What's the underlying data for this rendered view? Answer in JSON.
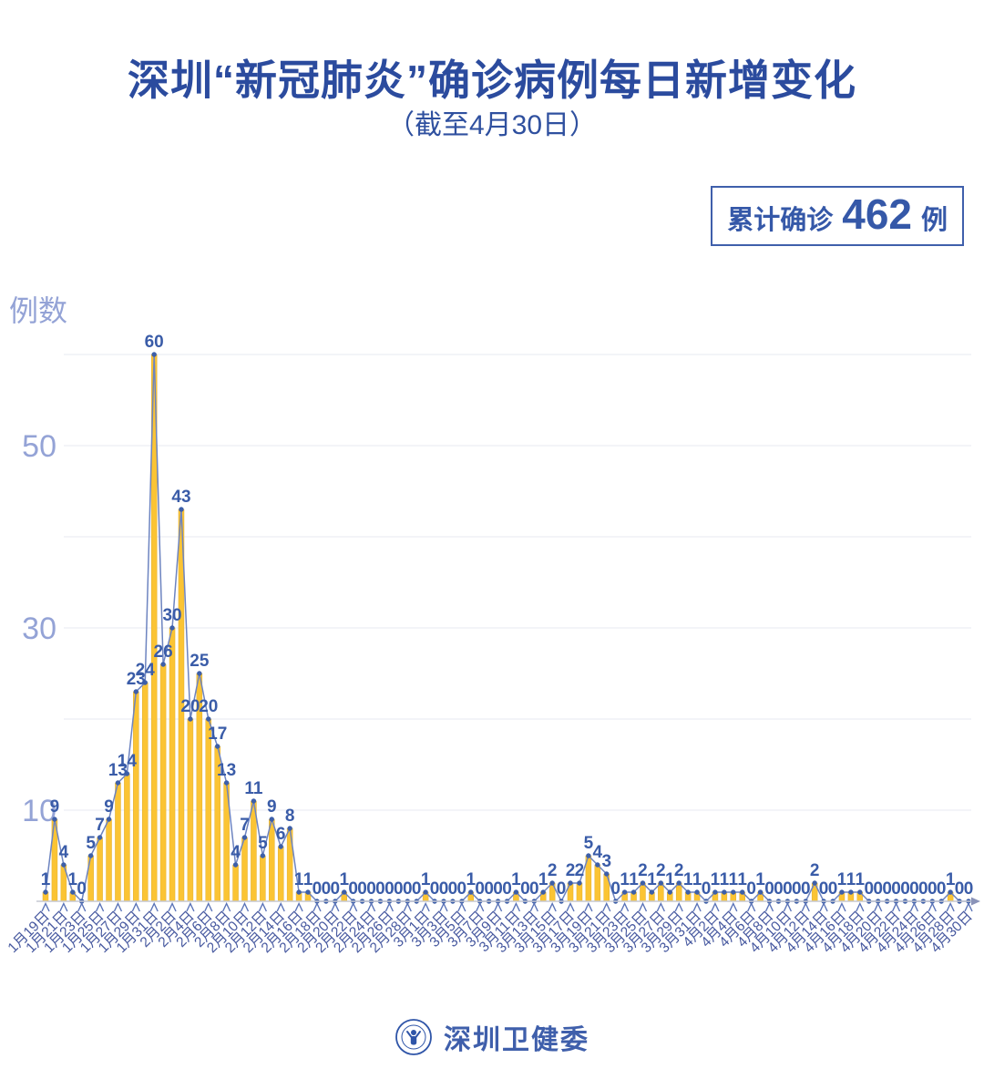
{
  "page": {
    "title": "深圳“新冠肺炎”确诊病例每日新增变化",
    "subtitle": "（截至4月30日）"
  },
  "badge": {
    "prefix": "累计确诊",
    "value": "462",
    "suffix": "例"
  },
  "footer": {
    "org_name": "深圳卫健委"
  },
  "chart_data": {
    "type": "bar",
    "line_overlay": true,
    "title": "深圳“新冠肺炎”确诊病例每日新增变化",
    "subtitle": "（截至4月30日）",
    "ylabel": "例数",
    "ylim": [
      0,
      62
    ],
    "y_ticks": [
      10,
      30,
      50
    ],
    "grid_values": [
      10,
      20,
      30,
      40,
      50,
      60
    ],
    "grid_on": true,
    "legend": "none",
    "start_date": "1月19日",
    "end_date": "4月30日",
    "x_tick_step": 2,
    "x_tick_labels": [
      "1月19日",
      "1月21日",
      "1月23日",
      "1月25日",
      "1月27日",
      "1月29日",
      "1月31日",
      "2月2日",
      "2月4日",
      "2月6日",
      "2月8日",
      "2月10日",
      "2月12日",
      "2月14日",
      "2月16日",
      "2月18日",
      "2月20日",
      "2月22日",
      "2月24日",
      "2月26日",
      "2月28日",
      "3月1日",
      "3月3日",
      "3月5日",
      "3月7日",
      "3月9日",
      "3月11日",
      "3月13日",
      "3月15日",
      "3月17日",
      "3月19日",
      "3月21日",
      "3月23日",
      "3月25日",
      "3月27日",
      "3月29日",
      "3月31日",
      "4月2日",
      "4月4日",
      "4月6日",
      "4月8日",
      "4月10日",
      "4月12日",
      "4月14日",
      "4月16日",
      "4月18日",
      "4月20日",
      "4月22日",
      "4月24日",
      "4月26日",
      "4月28日",
      "4月30日"
    ],
    "values": [
      1,
      9,
      4,
      1,
      0,
      5,
      7,
      9,
      13,
      14,
      23,
      24,
      60,
      26,
      30,
      43,
      20,
      25,
      20,
      17,
      13,
      4,
      7,
      11,
      5,
      9,
      6,
      8,
      1,
      1,
      0,
      0,
      0,
      1,
      0,
      0,
      0,
      0,
      0,
      0,
      0,
      0,
      1,
      0,
      0,
      0,
      0,
      1,
      0,
      0,
      0,
      0,
      1,
      0,
      0,
      1,
      2,
      0,
      2,
      2,
      5,
      4,
      3,
      0,
      1,
      1,
      2,
      1,
      2,
      1,
      2,
      1,
      1,
      0,
      1,
      1,
      1,
      1,
      0,
      1,
      0,
      0,
      0,
      0,
      0,
      2,
      0,
      0,
      1,
      1,
      1,
      0,
      0,
      0,
      0,
      0,
      0,
      0,
      0,
      0,
      1,
      0,
      0
    ],
    "total": 462,
    "colors": {
      "title": "#2B4B9E",
      "bar": "#FBC434",
      "bar_edge": "#E2AE2E",
      "line": "#6D84C0",
      "point": "#3D5FA9",
      "value_label": "#3A5CA8",
      "y_axis_label": "#94A3D6",
      "date_label": "#46589F",
      "gridline": "#ECEDF3",
      "axis": "#C6C9D2",
      "badge_blue": "#3558A8"
    }
  }
}
